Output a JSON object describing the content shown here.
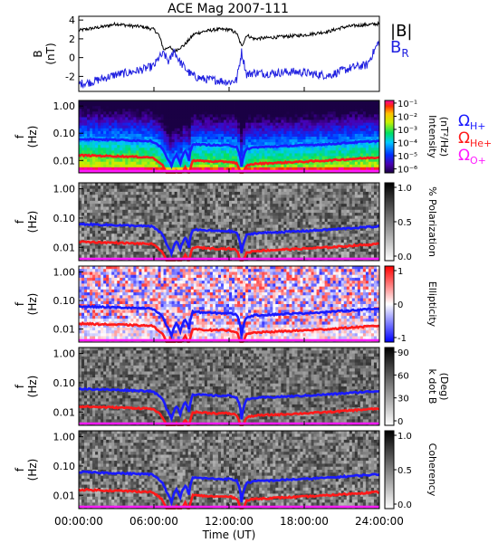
{
  "title": "ACE Mag 2007-111",
  "xaxis": {
    "label": "Time (UT)",
    "ticks": [
      "00:00:00",
      "06:00:00",
      "12:00:00",
      "18:00:00",
      "24:00:00"
    ],
    "range_hours": [
      0,
      24
    ]
  },
  "colors": {
    "B_total": "#000000",
    "B_R": "#2020e0",
    "H_cyclotron": "#1a1aff",
    "He_cyclotron": "#ff1a1a",
    "O_cyclotron": "#ff1aff"
  },
  "chart_data": [
    {
      "type": "line",
      "ylabel": "B\n(nT)",
      "ylim": [
        -3.6,
        4.4
      ],
      "yticks": [
        "4",
        "2",
        "0",
        "-2"
      ],
      "ytick_values": [
        4,
        2,
        0,
        -2
      ],
      "x_hours": [
        0,
        1,
        2,
        3,
        4,
        5,
        6,
        6.4,
        6.8,
        7.2,
        7.6,
        8.0,
        8.4,
        8.8,
        9.2,
        10,
        11,
        12,
        12.6,
        13.0,
        13.4,
        14,
        15,
        16,
        17,
        18,
        19,
        20,
        21,
        22,
        23,
        24
      ],
      "series": [
        {
          "name": "|B|",
          "values": [
            2.9,
            3.1,
            3.3,
            3.6,
            3.4,
            3.3,
            3.0,
            2.4,
            0.8,
            1.2,
            0.6,
            1.0,
            1.3,
            1.9,
            2.5,
            2.8,
            3.0,
            3.0,
            2.6,
            1.2,
            2.4,
            2.0,
            2.1,
            2.2,
            2.3,
            2.4,
            2.6,
            2.8,
            3.2,
            3.4,
            3.5,
            3.6
          ]
        },
        {
          "name": "B_R",
          "values": [
            -2.8,
            -2.6,
            -2.2,
            -1.8,
            -1.6,
            -1.3,
            -0.9,
            0.0,
            0.4,
            -0.5,
            0.8,
            -0.3,
            -1.0,
            -1.6,
            -2.0,
            -2.3,
            -2.4,
            -2.6,
            -2.4,
            0.6,
            -1.8,
            -1.6,
            -1.7,
            -1.6,
            -1.5,
            -1.6,
            -1.8,
            -1.9,
            -1.4,
            -1.0,
            -0.8,
            1.8
          ]
        }
      ]
    },
    {
      "type": "heatmap",
      "ylabel": "f\n(Hz)",
      "yticks": [
        "1.00",
        "0.10",
        "0.01"
      ],
      "ytick_values": [
        1.0,
        0.1,
        0.01
      ],
      "ylim_hz": [
        0.0035,
        1.6
      ],
      "colorbar": {
        "label": "Intensity\n(nT²/Hz)",
        "ticks": [
          "10⁻¹",
          "10⁻²",
          "10⁻³",
          "10⁻⁴",
          "10⁻⁵",
          "10⁻⁶"
        ],
        "range": [
          -6.3,
          -0.8
        ],
        "scale": "log10",
        "cmap": "rainbow"
      },
      "legend": [
        "ΩH+",
        "ΩHe+",
        "ΩO+"
      ]
    },
    {
      "type": "heatmap",
      "ylabel": "f\n(Hz)",
      "yticks": [
        "1.00",
        "0.10",
        "0.01"
      ],
      "ytick_values": [
        1.0,
        0.1,
        0.01
      ],
      "ylim_hz": [
        0.0035,
        1.6
      ],
      "colorbar": {
        "label": "% Polarization",
        "ticks": [
          "1.0",
          "0.5",
          "0.0"
        ],
        "range": [
          0,
          1
        ],
        "cmap": "gray"
      }
    },
    {
      "type": "heatmap",
      "ylabel": "f\n(Hz)",
      "yticks": [
        "1.00",
        "0.10",
        "0.01"
      ],
      "ytick_values": [
        1.0,
        0.1,
        0.01
      ],
      "ylim_hz": [
        0.0035,
        1.6
      ],
      "colorbar": {
        "label": "Ellipticity",
        "ticks": [
          "1",
          "0",
          "-1"
        ],
        "range": [
          -1,
          1
        ],
        "cmap": "blue-white-red"
      }
    },
    {
      "type": "heatmap",
      "ylabel": "f\n(Hz)",
      "yticks": [
        "1.00",
        "0.10",
        "0.01"
      ],
      "ytick_values": [
        1.0,
        0.1,
        0.01
      ],
      "ylim_hz": [
        0.0035,
        1.6
      ],
      "colorbar": {
        "label": "k dot B\n(Deg)",
        "ticks": [
          "90",
          "60",
          "30",
          "0"
        ],
        "range": [
          0,
          90
        ],
        "cmap": "gray"
      }
    },
    {
      "type": "heatmap",
      "ylabel": "f\n(Hz)",
      "yticks": [
        "1.00",
        "0.10",
        "0.01"
      ],
      "ytick_values": [
        1.0,
        0.1,
        0.01
      ],
      "ylim_hz": [
        0.0035,
        1.6
      ],
      "colorbar": {
        "label": "Coherency",
        "ticks": [
          "1.0",
          "0.5",
          "0.0"
        ],
        "range": [
          0,
          1
        ],
        "cmap": "gray"
      }
    }
  ]
}
